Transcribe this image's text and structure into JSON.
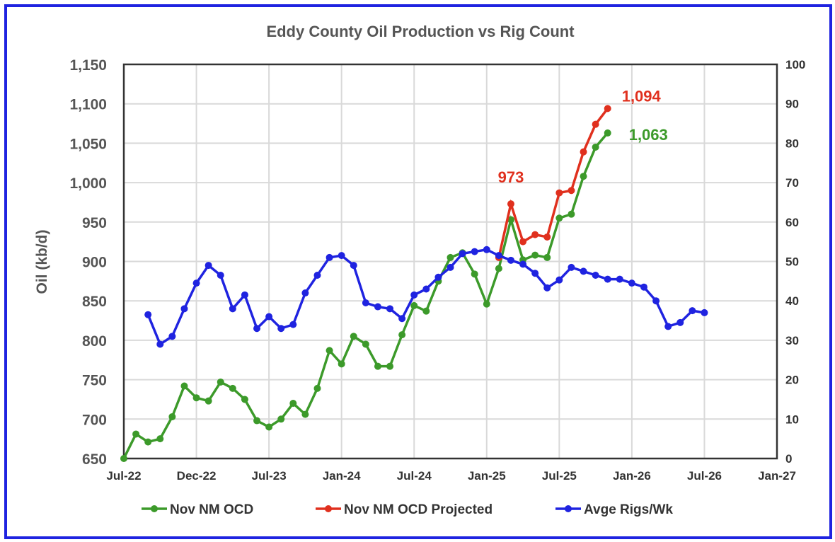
{
  "chart_data": {
    "type": "line",
    "title": "Eddy County Oil Production vs Rig Count",
    "ylabel": "Oil (kb/d)",
    "y2label": "",
    "ylim": [
      650,
      1150
    ],
    "y2lim": [
      0,
      100
    ],
    "yticks": [
      "650",
      "700",
      "750",
      "800",
      "850",
      "900",
      "950",
      "1,000",
      "1,050",
      "1,100",
      "1,150"
    ],
    "y2ticks": [
      "0",
      "10",
      "20",
      "30",
      "40",
      "50",
      "60",
      "70",
      "80",
      "90",
      "100"
    ],
    "xticks": [
      "Jul-22",
      "Dec-22",
      "Jul-23",
      "Jan-24",
      "Jul-24",
      "Jan-25",
      "Jul-25",
      "Jan-26",
      "Jul-26",
      "Jan-27"
    ],
    "x_start": "Jul-22",
    "x_months_span": 54,
    "grid": true,
    "legend_position": "bottom",
    "series": [
      {
        "name": "Nov  NM OCD",
        "color": "#3c9a2a",
        "axis": "left",
        "start_month": 0,
        "values": [
          650,
          681,
          671,
          675,
          703,
          742,
          727,
          723,
          747,
          739,
          725,
          698,
          690,
          700,
          720,
          706,
          739,
          787,
          770,
          805,
          795,
          767,
          767,
          807,
          844,
          837,
          875,
          905,
          911,
          884,
          846,
          891,
          953,
          902,
          908,
          905,
          955,
          960,
          1008,
          1045,
          1063
        ]
      },
      {
        "name": "Nov NM OCD Projected",
        "color": "#e0301e",
        "axis": "left",
        "start_month": 31,
        "values": [
          905,
          973,
          925,
          934,
          931,
          987,
          990,
          1039,
          1074,
          1094
        ]
      },
      {
        "name": "Avge Rigs/Wk",
        "color": "#1f23e0",
        "axis": "right",
        "start_month": 2,
        "values": [
          36.5,
          29,
          31,
          38,
          44.5,
          49,
          46.5,
          38,
          41.5,
          33,
          36,
          33,
          34,
          42,
          46.5,
          51,
          51.5,
          49,
          39.5,
          38.5,
          38,
          35.5,
          41.5,
          43,
          46,
          48.5,
          52,
          52.5,
          53,
          51.5,
          50.3,
          49.3,
          47,
          43.3,
          45.3,
          48.5,
          47.5,
          46.5,
          45.5,
          45.5,
          44.5,
          43.5,
          40,
          33.5,
          34.5,
          37.5,
          37
        ]
      }
    ],
    "annotations": [
      {
        "text": "973",
        "series": 1,
        "index": 1,
        "color": "#e0301e"
      },
      {
        "text": "1,094",
        "series": 1,
        "index": 9,
        "color": "#e0301e"
      },
      {
        "text": "1,063",
        "series": 0,
        "index": 40,
        "color": "#3c9a2a"
      }
    ]
  }
}
